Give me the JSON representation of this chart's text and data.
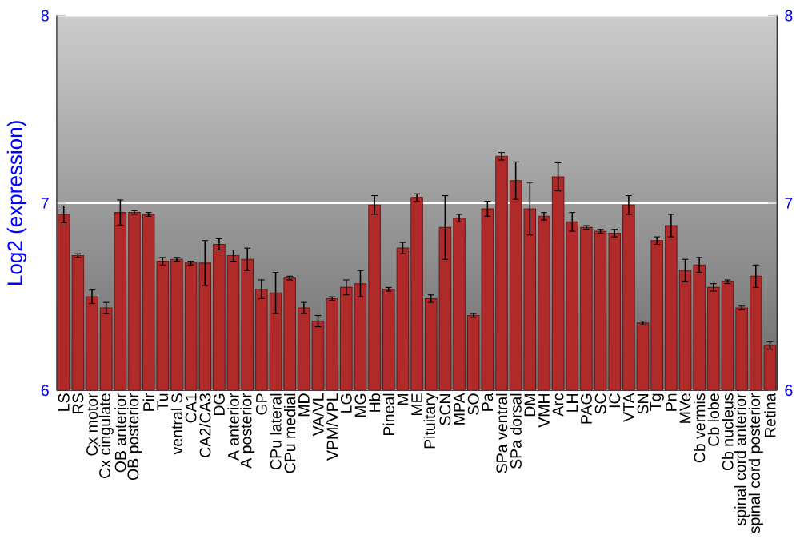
{
  "chart_data": {
    "type": "bar",
    "ylabel": "Log2 (expression)",
    "color": "#b02a2a",
    "grid": "y",
    "categories": [
      "LS",
      "RS",
      "Cx motor",
      "Cx cingulate",
      "OB anterior",
      "OB posterior",
      "Pir",
      "Tu",
      "ventral S",
      "CA1",
      "CA2/CA3",
      "DG",
      "A anterior",
      "A posterior",
      "GP",
      "CPu lateral",
      "CPu medial",
      "MD",
      "VA/VL",
      "VPM/VPL",
      "LG",
      "MG",
      "Hb",
      "Pineal",
      "M",
      "ME",
      "Pituitary",
      "SCN",
      "MPA",
      "SO",
      "Pa",
      "SPa ventral",
      "SPa dorsal",
      "DM",
      "VMH",
      "Arc",
      "LH",
      "PAG",
      "SC",
      "IC",
      "VTA",
      "SN",
      "Tg",
      "Pn",
      "MVe",
      "Cb vermis",
      "Cb lobe",
      "Cb nucleus",
      "spinal cord anterior",
      "spinal cord posterior",
      "Retina"
    ],
    "values": [
      6.94,
      6.72,
      6.5,
      6.44,
      6.95,
      6.95,
      6.94,
      6.69,
      6.7,
      6.68,
      6.68,
      6.78,
      6.72,
      6.7,
      6.54,
      6.52,
      6.6,
      6.44,
      6.37,
      6.49,
      6.55,
      6.57,
      6.99,
      6.54,
      6.76,
      7.03,
      6.49,
      6.87,
      6.92,
      6.4,
      6.97,
      7.25,
      7.12,
      6.97,
      6.93,
      7.14,
      6.9,
      6.87,
      6.85,
      6.84,
      6.99,
      6.36,
      6.8,
      6.88,
      6.64,
      6.67,
      6.55,
      6.58,
      6.44,
      6.61,
      6.24
    ],
    "errors": [
      0.045,
      0.01,
      0.036,
      0.03,
      0.067,
      0.01,
      0.01,
      0.02,
      0.01,
      0.01,
      0.12,
      0.03,
      0.03,
      0.06,
      0.05,
      0.11,
      0.01,
      0.03,
      0.03,
      0.01,
      0.04,
      0.07,
      0.05,
      0.01,
      0.03,
      0.02,
      0.02,
      0.17,
      0.02,
      0.01,
      0.04,
      0.02,
      0.1,
      0.14,
      0.02,
      0.075,
      0.05,
      0.01,
      0.01,
      0.02,
      0.05,
      0.01,
      0.02,
      0.06,
      0.06,
      0.04,
      0.02,
      0.01,
      0.01,
      0.06,
      0.02
    ],
    "ylim": [
      6,
      8
    ],
    "yticks": [
      6,
      7,
      8
    ],
    "y2lim": [
      6,
      8
    ],
    "y2ticks": [
      6,
      7,
      8
    ]
  }
}
